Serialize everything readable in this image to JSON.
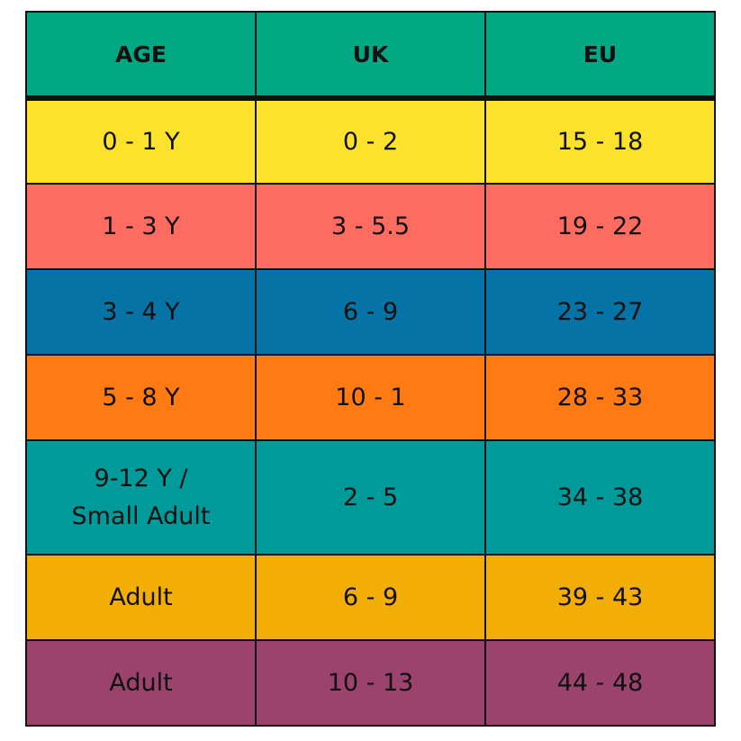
{
  "table": {
    "header": [
      "AGE",
      "UK",
      "EU"
    ],
    "rows": [
      [
        "0 - 1 Y",
        "0 - 2",
        "15 - 18"
      ],
      [
        "1 - 3 Y",
        "3 - 5.5",
        "19 - 22"
      ],
      [
        "3 - 4 Y",
        "6 - 9",
        "23 - 27"
      ],
      [
        "5 - 8 Y",
        "10 - 1",
        "28 - 33"
      ],
      [
        "9-12 Y /\nSmall Adult",
        "2 - 5",
        "34 - 38"
      ],
      [
        "Adult",
        "6 - 9",
        "39 - 43"
      ],
      [
        "Adult",
        "10 - 13",
        "44 - 48"
      ]
    ]
  }
}
